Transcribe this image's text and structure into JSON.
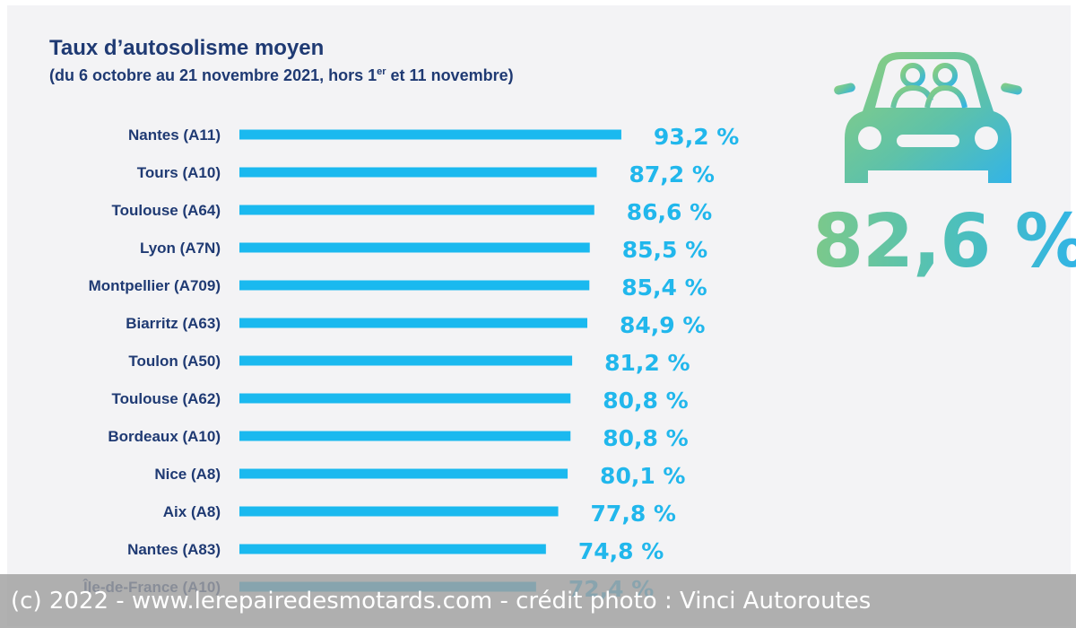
{
  "header": {
    "title": "Taux d’autosolisme moyen",
    "subtitle_pre": "(du 6 octobre au 21 novembre 2021, hors 1",
    "subtitle_sup": "er",
    "subtitle_post": " et 11 novembre)"
  },
  "summary": {
    "value": "82,6 %",
    "icon": "car-with-passengers-icon"
  },
  "colors": {
    "bar": "#1ab9ef",
    "label": "#1f3a73",
    "value": "#21b7ec",
    "accent_green": "#7cc98a"
  },
  "chart_data": {
    "type": "bar",
    "orientation": "horizontal",
    "title": "Taux d’autosolisme moyen",
    "subtitle": "(du 6 octobre au 21 novembre 2021, hors 1er et 11 novembre)",
    "categories": [
      "Nantes (A11)",
      "Tours (A10)",
      "Toulouse (A64)",
      "Lyon (A7N)",
      "Montpellier (A709)",
      "Biarritz (A63)",
      "Toulon (A50)",
      "Toulouse (A62)",
      "Bordeaux (A10)",
      "Nice (A8)",
      "Aix (A8)",
      "Nantes (A83)",
      "Île-de-France (A10)"
    ],
    "values": [
      93.2,
      87.2,
      86.6,
      85.5,
      85.4,
      84.9,
      81.2,
      80.8,
      80.8,
      80.1,
      77.8,
      74.8,
      72.4
    ],
    "value_labels": [
      "93,2 %",
      "87,2 %",
      "86,6 %",
      "85,5 %",
      "85,4 %",
      "84,9 %",
      "81,2 %",
      "80,8 %",
      "80,8 %",
      "80,1 %",
      "77,8 %",
      "74,8 %",
      "72,4 %"
    ],
    "xlim": [
      0,
      100
    ],
    "grid": false,
    "legend": "none"
  },
  "watermark": {
    "text": "(c) 2022 - www.lerepairedesmotards.com - crédit photo : Vinci Autoroutes"
  }
}
